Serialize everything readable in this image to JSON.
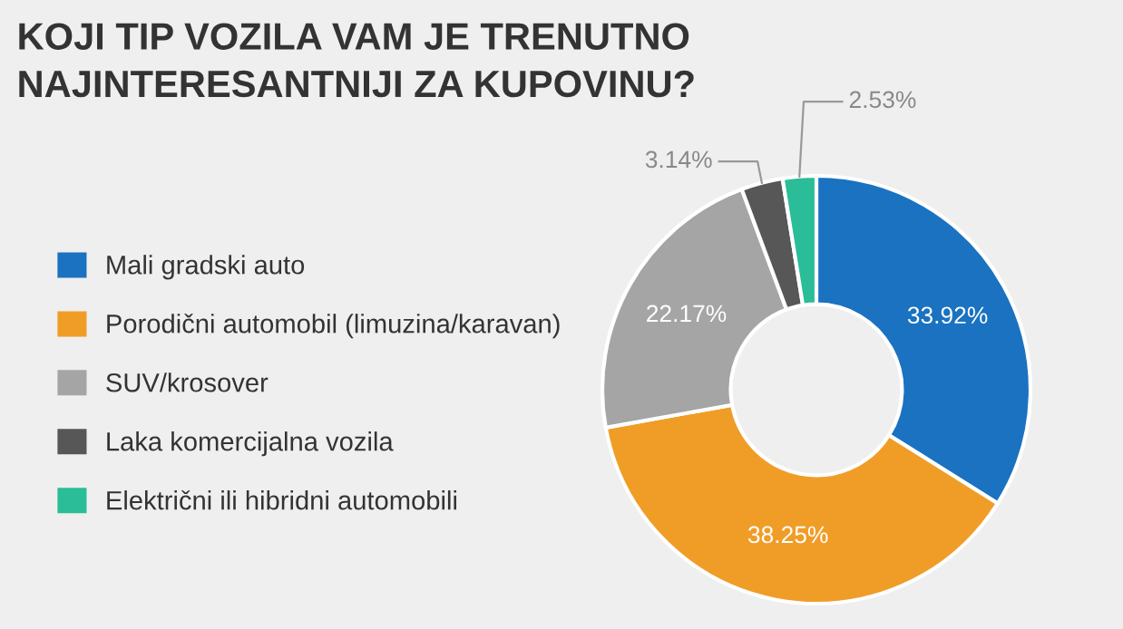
{
  "chart_data": {
    "type": "donut",
    "title": "KOJI TIP VOZILA VAM JE TRENUTNO\nNAJINTERESANTNIJI ZA KUPOVINU?",
    "categories": [
      "Mali gradski auto",
      "Porodični automobil (limuzina/karavan)",
      "SUV/krosover",
      "Laka komercijalna vozila",
      "Električni ili hibridni automobili"
    ],
    "values": [
      33.92,
      38.25,
      22.17,
      3.14,
      2.53
    ],
    "value_labels": [
      "33.92%",
      "38.25%",
      "22.17%",
      "3.14%",
      "2.53%"
    ],
    "colors": [
      "#1a72c0",
      "#f09d28",
      "#a5a5a5",
      "#575757",
      "#2bbd97"
    ],
    "legend": "left"
  }
}
